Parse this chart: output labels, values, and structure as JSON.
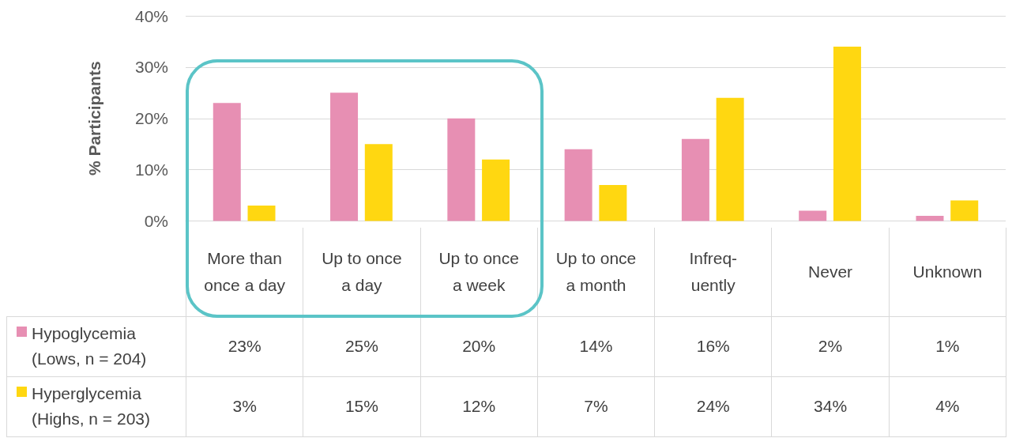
{
  "chart_data": {
    "type": "bar",
    "ylabel": "% Participants",
    "categories": [
      "More than once a day",
      "Up to once a day",
      "Up to once a week",
      "Up to once a month",
      "Infreq-uently",
      "Never",
      "Unknown"
    ],
    "series": [
      {
        "name": "Hypoglycemia (Lows, n = 204)",
        "color": "#e78fb3",
        "values": [
          23,
          25,
          20,
          14,
          16,
          2,
          1
        ],
        "value_labels": [
          "23%",
          "25%",
          "20%",
          "14%",
          "16%",
          "2%",
          "1%"
        ]
      },
      {
        "name": "Hyperglycemia (Highs, n = 203)",
        "color": "#ffd711",
        "values": [
          3,
          15,
          12,
          7,
          24,
          34,
          4
        ],
        "value_labels": [
          "3%",
          "15%",
          "12%",
          "7%",
          "24%",
          "34%",
          "4%"
        ]
      }
    ],
    "ylim": [
      0,
      40
    ],
    "yticks": [
      {
        "value": 0,
        "label": "0%"
      },
      {
        "value": 10,
        "label": "10%"
      },
      {
        "value": 20,
        "label": "20%"
      },
      {
        "value": 30,
        "label": "30%"
      },
      {
        "value": 40,
        "label": "40%"
      }
    ],
    "grid": "y",
    "legend": "bottom"
  }
}
